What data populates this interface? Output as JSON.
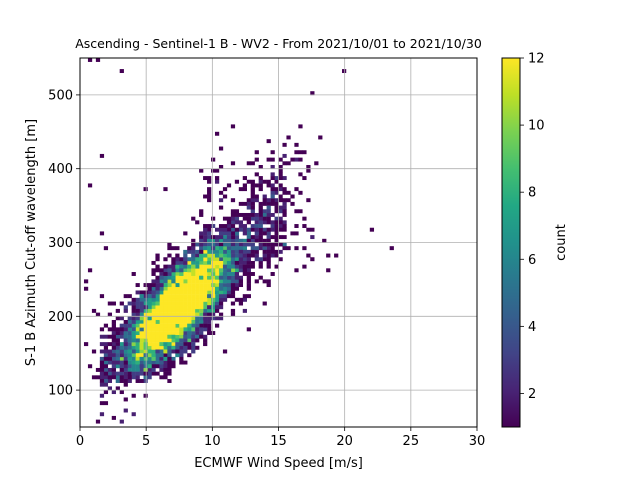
{
  "chart_data": {
    "type": "heatmap",
    "title": "Ascending - Sentinel-1 B - WV2 - From 2021/10/01 to 2021/10/30",
    "xlabel": "ECMWF Wind Speed [m/s]",
    "ylabel": "S-1 B Azimuth Cut-off wavelength [m]",
    "colorbar_label": "count",
    "colormap": "viridis",
    "xlim": [
      0,
      30
    ],
    "ylim": [
      50,
      550
    ],
    "x_ticks": [
      0,
      5,
      10,
      15,
      20,
      25,
      30
    ],
    "y_ticks": [
      100,
      200,
      300,
      400,
      500
    ],
    "color_range": [
      1,
      12
    ],
    "colorbar_ticks": [
      2,
      4,
      6,
      8,
      10,
      12
    ],
    "grid": true,
    "bin_width_x": 0.3,
    "bin_width_y": 5,
    "main_cluster": {
      "center_x": 7.5,
      "center_y": 215,
      "peak_count": 12,
      "x_range": [
        0.5,
        17
      ],
      "y_range": [
        110,
        360
      ]
    },
    "outliers": [
      [
        0.8,
        545
      ],
      [
        1.2,
        545
      ],
      [
        3.2,
        530
      ],
      [
        19.8,
        530
      ],
      [
        17.5,
        500
      ],
      [
        1.7,
        415
      ],
      [
        0.6,
        378
      ],
      [
        10.5,
        425
      ],
      [
        11.5,
        455
      ],
      [
        10.3,
        445
      ],
      [
        14.2,
        435
      ],
      [
        15.8,
        440
      ],
      [
        16.5,
        455
      ],
      [
        18.2,
        440
      ],
      [
        15.3,
        430
      ],
      [
        16.4,
        432
      ],
      [
        13.2,
        422
      ],
      [
        14.5,
        410
      ],
      [
        16.0,
        412
      ],
      [
        17.8,
        405
      ],
      [
        22.0,
        315
      ],
      [
        23.6,
        290
      ],
      [
        18.3,
        300
      ],
      [
        18.8,
        280
      ],
      [
        17.5,
        275
      ],
      [
        18.6,
        262
      ],
      [
        17.0,
        265
      ],
      [
        16.2,
        262
      ],
      [
        1.6,
        312
      ],
      [
        1.8,
        290
      ],
      [
        0.6,
        262
      ],
      [
        0.4,
        245
      ],
      [
        0.3,
        238
      ],
      [
        1.2,
        200
      ],
      [
        0.9,
        205
      ],
      [
        0.4,
        160
      ],
      [
        0.6,
        130
      ],
      [
        1.3,
        55
      ],
      [
        4.4,
        125
      ],
      [
        5.0,
        372
      ],
      [
        6.5,
        372
      ],
      [
        9.5,
        385
      ],
      [
        10.0,
        410
      ],
      [
        12.5,
        385
      ],
      [
        13.7,
        380
      ],
      [
        14.9,
        385
      ],
      [
        16.2,
        372
      ],
      [
        13.0,
        362
      ],
      [
        15.5,
        350
      ],
      [
        17.2,
        318
      ],
      [
        16.4,
        310
      ],
      [
        17.4,
        305
      ],
      [
        19.2,
        282
      ],
      [
        12.8,
        235
      ],
      [
        14.3,
        295
      ],
      [
        9.8,
        175
      ],
      [
        12.5,
        220
      ]
    ]
  }
}
